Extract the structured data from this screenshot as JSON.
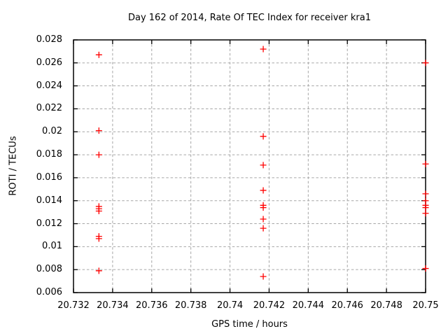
{
  "page": {
    "background": "#ffffff",
    "text_color": "#000000",
    "grid_color": "#a6a6a6",
    "border_color": "#000000"
  },
  "chart_data": {
    "type": "scatter",
    "title": "Day 162 of 2014, Rate Of TEC Index for receiver kra1",
    "xlabel": "GPS time / hours",
    "ylabel": "ROTI / TECUs",
    "xlim": [
      20.732,
      20.75
    ],
    "ylim": [
      0.006,
      0.028
    ],
    "grid": true,
    "legend": false,
    "marker": {
      "shape": "plus",
      "color": "#ff0000",
      "size": 9
    },
    "xticks": [
      {
        "v": 20.732,
        "label": "20.732"
      },
      {
        "v": 20.734,
        "label": "20.734"
      },
      {
        "v": 20.736,
        "label": "20.736"
      },
      {
        "v": 20.738,
        "label": "20.738"
      },
      {
        "v": 20.74,
        "label": "20.74"
      },
      {
        "v": 20.742,
        "label": "20.742"
      },
      {
        "v": 20.744,
        "label": "20.744"
      },
      {
        "v": 20.746,
        "label": "20.746"
      },
      {
        "v": 20.748,
        "label": "20.748"
      },
      {
        "v": 20.75,
        "label": "20.75"
      }
    ],
    "yticks": [
      {
        "v": 0.006,
        "label": "0.006"
      },
      {
        "v": 0.008,
        "label": "0.008"
      },
      {
        "v": 0.01,
        "label": "0.01"
      },
      {
        "v": 0.012,
        "label": "0.012"
      },
      {
        "v": 0.014,
        "label": "0.014"
      },
      {
        "v": 0.016,
        "label": "0.016"
      },
      {
        "v": 0.018,
        "label": "0.018"
      },
      {
        "v": 0.02,
        "label": "0.02"
      },
      {
        "v": 0.022,
        "label": "0.022"
      },
      {
        "v": 0.024,
        "label": "0.024"
      },
      {
        "v": 0.026,
        "label": "0.026"
      },
      {
        "v": 0.028,
        "label": "0.028"
      }
    ],
    "series": [
      {
        "name": "roti",
        "color": "#ff0000",
        "points": [
          [
            20.7333,
            0.0267
          ],
          [
            20.7333,
            0.0201
          ],
          [
            20.7333,
            0.018
          ],
          [
            20.7333,
            0.0135
          ],
          [
            20.7333,
            0.0133
          ],
          [
            20.7333,
            0.0131
          ],
          [
            20.7333,
            0.0109
          ],
          [
            20.7333,
            0.0107
          ],
          [
            20.7333,
            0.0079
          ],
          [
            20.7417,
            0.0272
          ],
          [
            20.7417,
            0.0196
          ],
          [
            20.7417,
            0.0171
          ],
          [
            20.7417,
            0.0149
          ],
          [
            20.7417,
            0.0136
          ],
          [
            20.7417,
            0.0134
          ],
          [
            20.7417,
            0.0124
          ],
          [
            20.7417,
            0.0116
          ],
          [
            20.7417,
            0.0074
          ],
          [
            20.75,
            0.026
          ],
          [
            20.75,
            0.0172
          ],
          [
            20.75,
            0.0146
          ],
          [
            20.75,
            0.014
          ],
          [
            20.75,
            0.0136
          ],
          [
            20.75,
            0.0134
          ],
          [
            20.75,
            0.0129
          ],
          [
            20.75,
            0.0081
          ]
        ]
      }
    ]
  }
}
